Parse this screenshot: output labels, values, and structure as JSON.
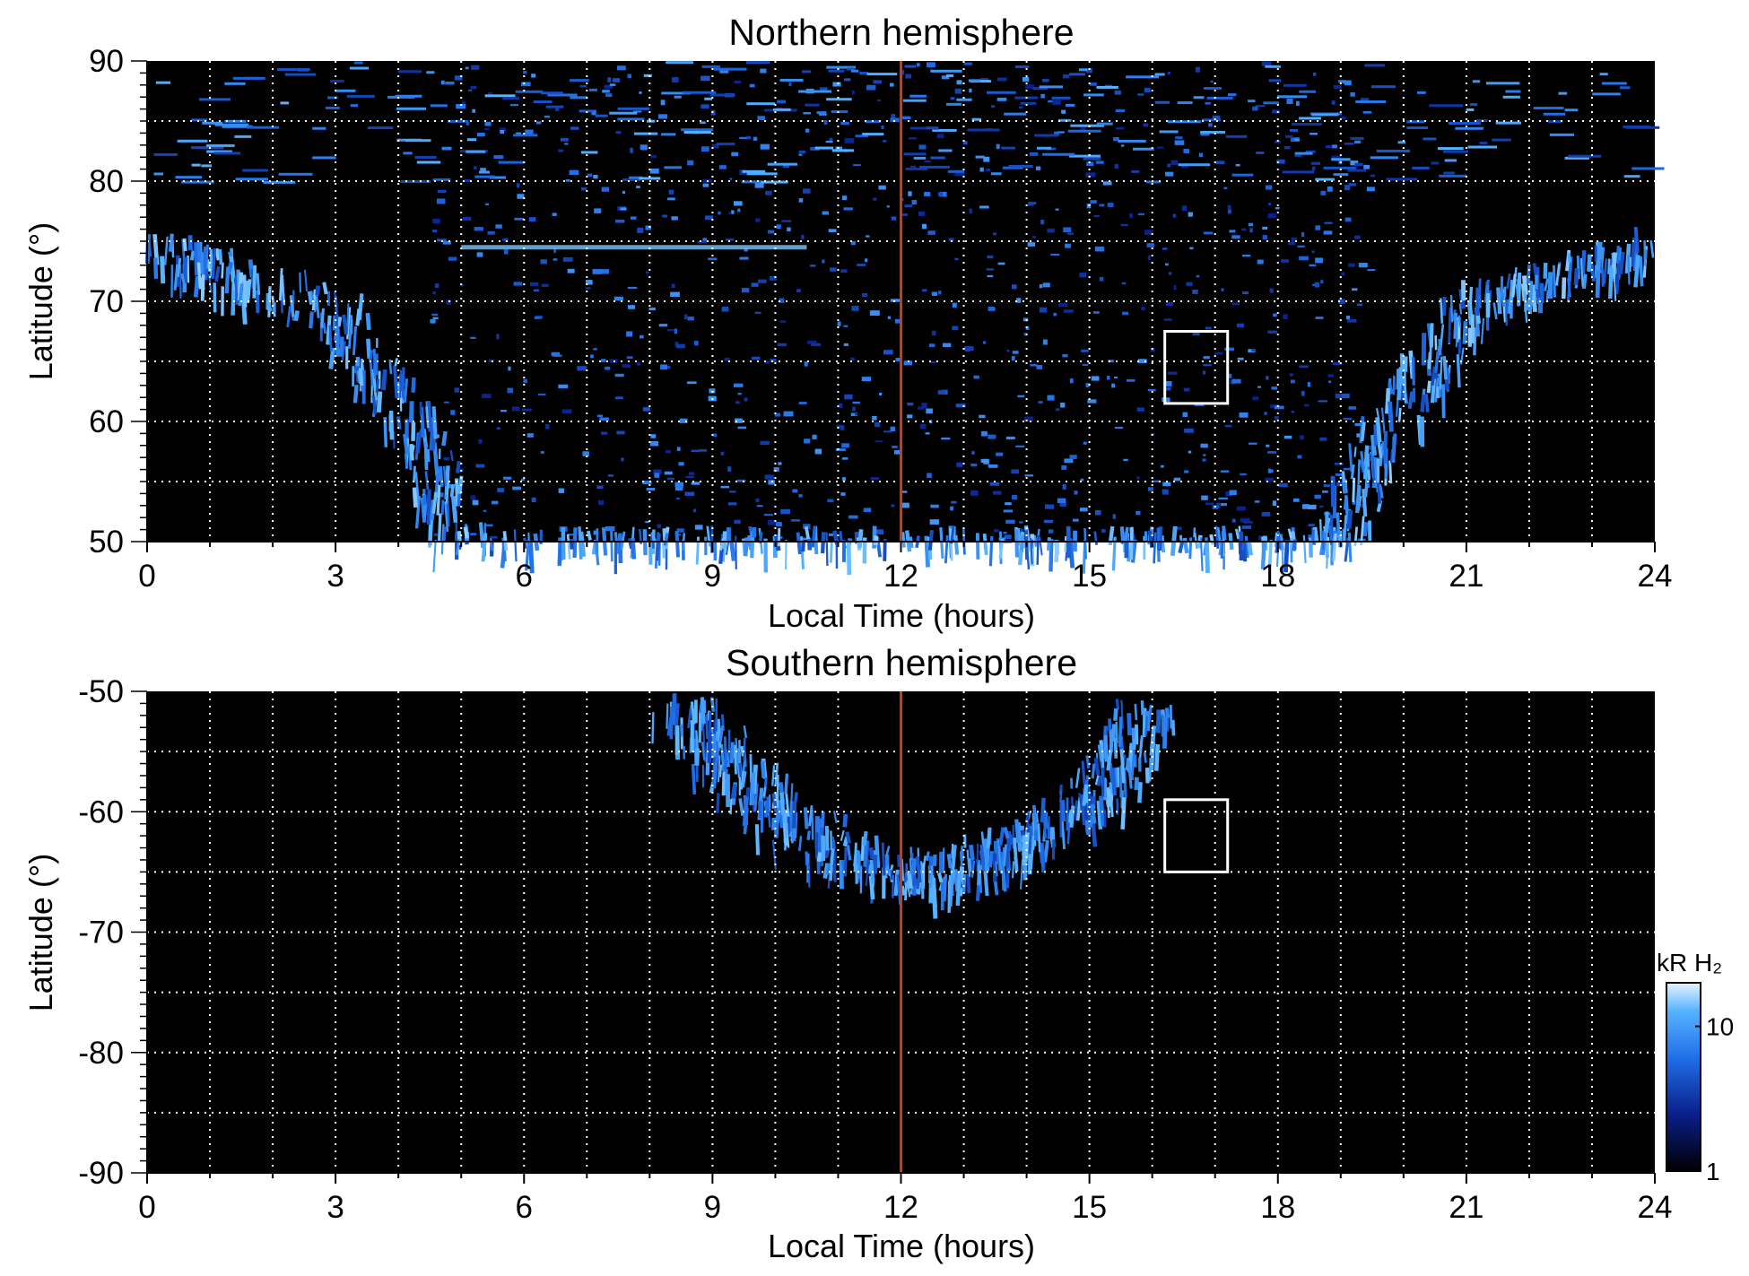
{
  "chart_data": [
    {
      "type": "heatmap",
      "title": "Northern hemisphere",
      "xlabel": "Local Time (hours)",
      "ylabel": "Latitude (°)",
      "xlim": [
        0,
        24
      ],
      "ylim": [
        50,
        90
      ],
      "xticks": [
        "0",
        "3",
        "6",
        "9",
        "12",
        "15",
        "18",
        "21",
        "24"
      ],
      "yticks": [
        "50",
        "60",
        "70",
        "80",
        "90"
      ],
      "grid": true,
      "reference_line": {
        "x": 12,
        "color": "#d03a10"
      },
      "box": {
        "x": [
          16.2,
          17.2
        ],
        "y": [
          61.5,
          67.5
        ]
      },
      "emission": {
        "main_oval": [
          {
            "x": 0,
            "y": 75
          },
          {
            "x": 3,
            "y": 70
          },
          {
            "x": 4.5,
            "y": 58
          },
          {
            "x": 5,
            "y": 50
          },
          {
            "x": 19,
            "y": 50
          },
          {
            "x": 19.5,
            "y": 58
          },
          {
            "x": 21,
            "y": 70
          },
          {
            "x": 24,
            "y": 75
          }
        ],
        "polar_arc_latitude": 74.5,
        "polar_arc_x": [
          5,
          10.5
        ]
      }
    },
    {
      "type": "heatmap",
      "title": "Southern hemisphere",
      "xlabel": "Local Time (hours)",
      "ylabel": "Latitude (°)",
      "xlim": [
        0,
        24
      ],
      "ylim": [
        -90,
        -50
      ],
      "xticks": [
        "0",
        "3",
        "6",
        "9",
        "12",
        "15",
        "18",
        "21",
        "24"
      ],
      "yticks": [
        "-50",
        "-60",
        "-70",
        "-80",
        "-90"
      ],
      "grid": true,
      "reference_line": {
        "x": 12,
        "color": "#d03a10"
      },
      "box": {
        "x": [
          16.2,
          17.2
        ],
        "y": [
          -65,
          -59
        ]
      },
      "emission": {
        "oval": [
          {
            "x": 8.4,
            "y": -50
          },
          {
            "x": 9.5,
            "y": -57
          },
          {
            "x": 11,
            "y": -63
          },
          {
            "x": 12.5,
            "y": -65
          },
          {
            "x": 14,
            "y": -62
          },
          {
            "x": 15.3,
            "y": -57
          },
          {
            "x": 16,
            "y": -50
          }
        ]
      }
    }
  ],
  "colorbar": {
    "label": "kR H₂",
    "ticks": [
      "1",
      "10"
    ],
    "range": [
      1,
      20
    ],
    "scale": "log",
    "colors": [
      "#000000",
      "#0a1e8a",
      "#1f6fe8",
      "#56b3ff",
      "#e6f3ff"
    ]
  }
}
